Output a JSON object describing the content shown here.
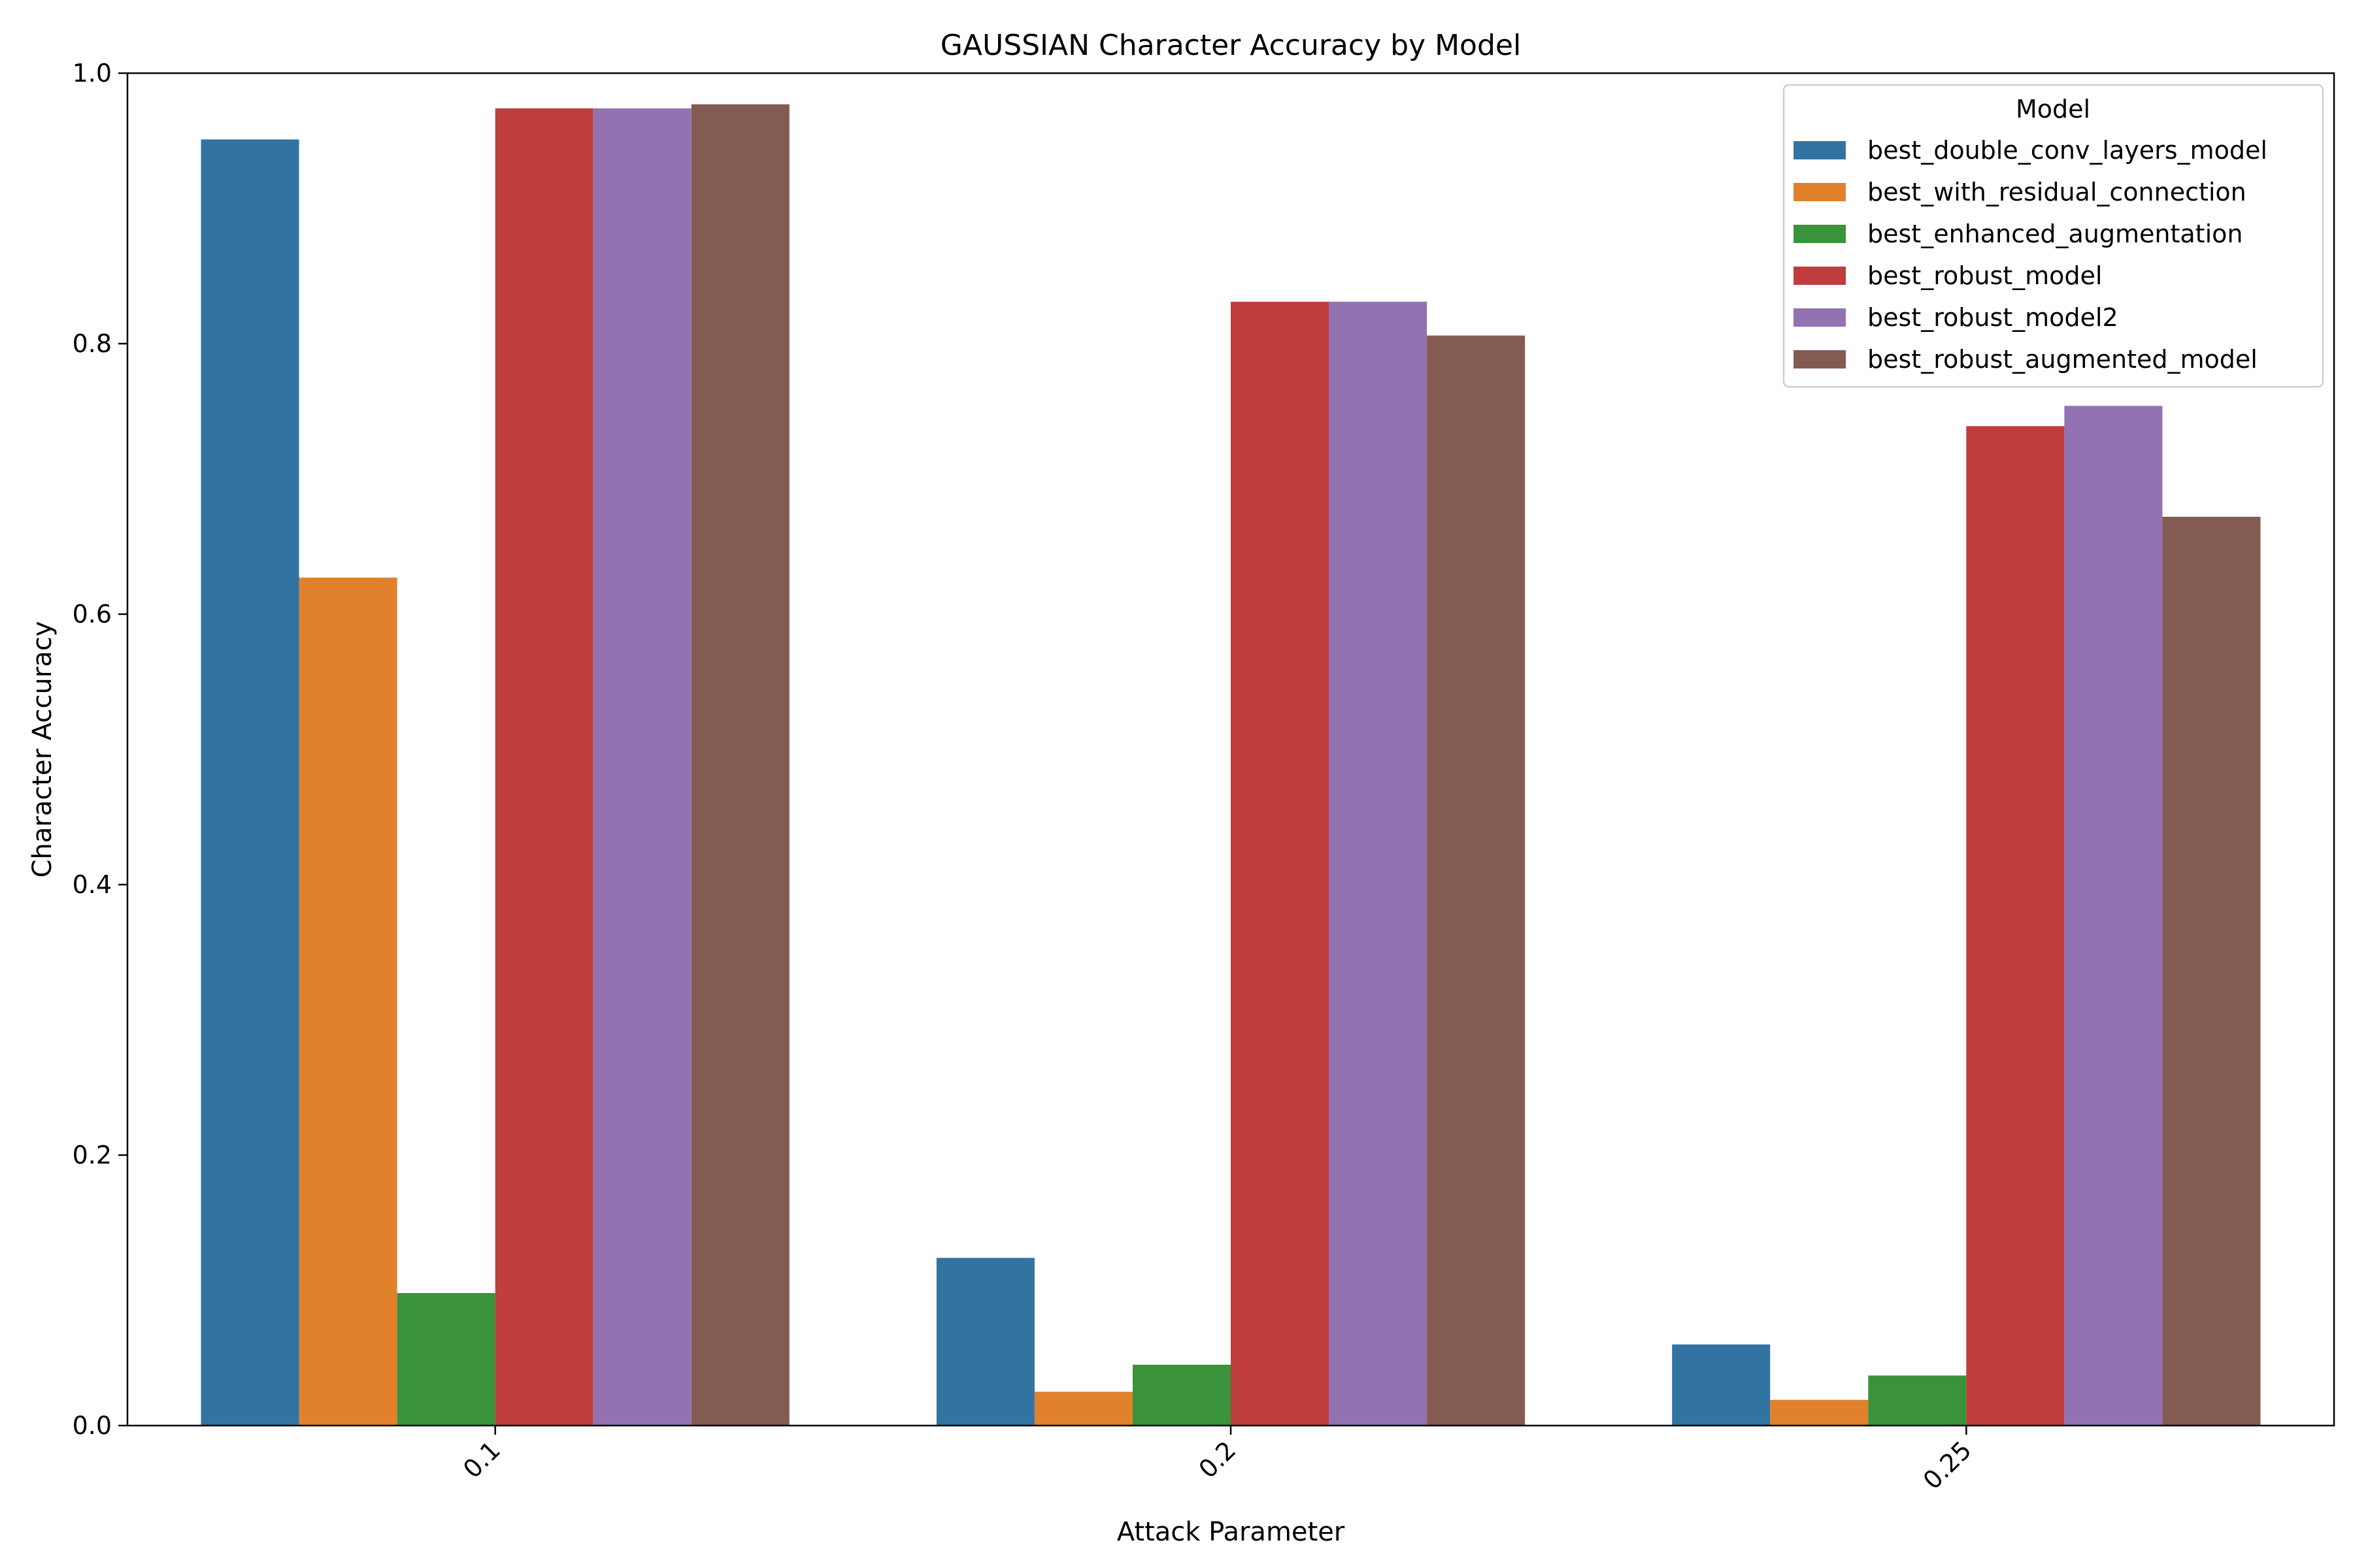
{
  "chart_data": {
    "type": "bar",
    "title": "GAUSSIAN Character Accuracy by Model",
    "xlabel": "Attack Parameter",
    "ylabel": "Character Accuracy",
    "categories": [
      "0.1",
      "0.2",
      "0.25"
    ],
    "ylim": [
      0,
      1.0
    ],
    "yticks": [
      "0.0",
      "0.2",
      "0.4",
      "0.6",
      "0.8",
      "1.0"
    ],
    "grid": false,
    "legend_title": "Model",
    "legend_position": "top-right",
    "series": [
      {
        "name": "best_double_conv_layers_model",
        "color": "#3274a1",
        "values": [
          0.951,
          0.124,
          0.06
        ]
      },
      {
        "name": "best_with_residual_connection",
        "color": "#e1812c",
        "values": [
          0.627,
          0.025,
          0.019
        ]
      },
      {
        "name": "best_enhanced_augmentation",
        "color": "#3a923a",
        "values": [
          0.098,
          0.045,
          0.037
        ]
      },
      {
        "name": "best_robust_model",
        "color": "#c03d3e",
        "values": [
          0.974,
          0.831,
          0.739
        ]
      },
      {
        "name": "best_robust_model2",
        "color": "#9372b2",
        "values": [
          0.974,
          0.831,
          0.754
        ]
      },
      {
        "name": "best_robust_augmented_model",
        "color": "#845b53",
        "values": [
          0.977,
          0.806,
          0.672
        ]
      }
    ]
  }
}
